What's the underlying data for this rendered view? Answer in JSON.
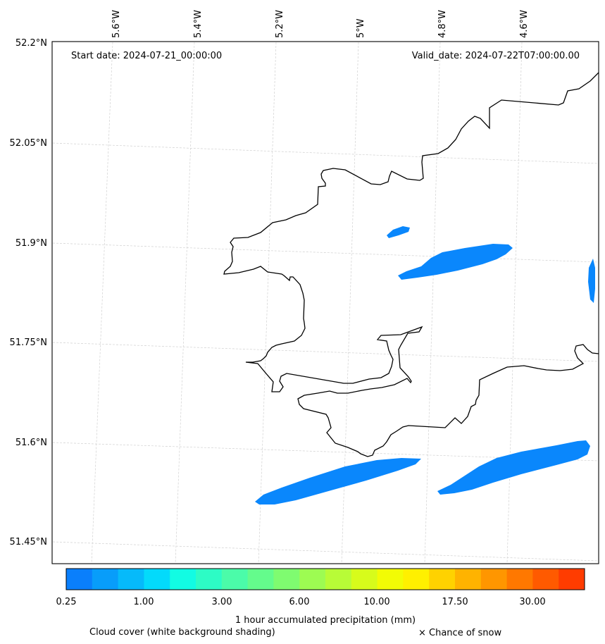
{
  "map": {
    "start_date_label": "Start date: 2024-07-21_00:00:00",
    "valid_date_label": "Valid_date: 2024-07-22T07:00:00.00",
    "lon_labels": [
      "5.6°W",
      "5.4°W",
      "5.2°W",
      "5°W",
      "4.8°W",
      "4.6°W"
    ],
    "lat_labels": [
      "52.2°N",
      "52.05°N",
      "51.9°N",
      "51.75°N",
      "51.6°N",
      "51.45°N"
    ],
    "precip_color": "#0a87fc",
    "coast_color": "#000000",
    "grid_color": "#cccccc"
  },
  "colorbar": {
    "title": "1 hour accumulated precipitation (mm)",
    "tick_labels": [
      "0.25",
      "1.00",
      "3.00",
      "6.00",
      "10.00",
      "17.50",
      "30.00"
    ],
    "colors": [
      "#0a7ffc",
      "#089dfa",
      "#06bafa",
      "#03dafb",
      "#12fce3",
      "#2dfcc5",
      "#4bfca9",
      "#64fc8c",
      "#7ffc70",
      "#9dfc52",
      "#b8fc37",
      "#d7fc1b",
      "#f2fc05",
      "#fff000",
      "#ffd200",
      "#ffb300",
      "#ff9600",
      "#ff7800",
      "#ff5a00",
      "#ff3c00"
    ]
  },
  "footer": {
    "cloud_label": "Cloud cover (white background shading)",
    "snow_label": "× Chance of snow"
  }
}
